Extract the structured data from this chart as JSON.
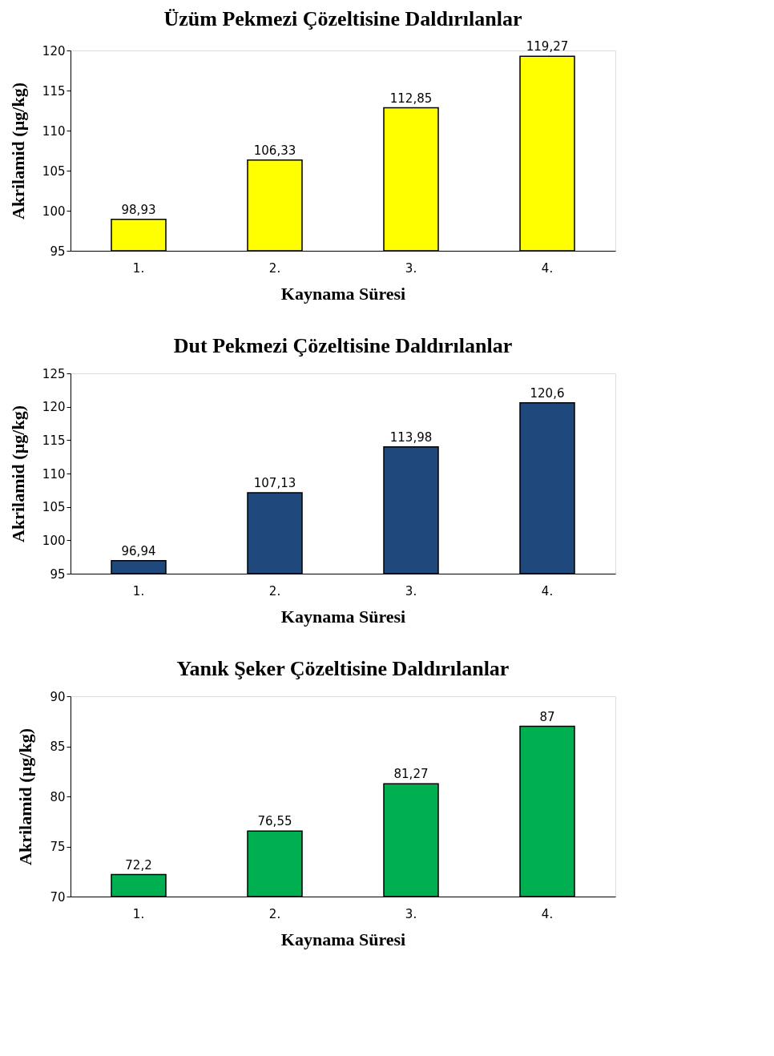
{
  "chart_data": [
    {
      "type": "bar",
      "title": "Üzüm Pekmezi Çözeltisine Daldırılanlar",
      "xlabel": "Kaynama Süresi",
      "ylabel": "Akrilamid (µg/kg)",
      "categories": [
        "1.",
        "2.",
        "3.",
        "4."
      ],
      "values": [
        98.93,
        106.33,
        112.85,
        119.27
      ],
      "value_labels": [
        "98,93",
        "106,33",
        "112,85",
        "119,27"
      ],
      "color": "#ffff00",
      "ylim": [
        95,
        120
      ],
      "yticks": [
        95,
        100,
        105,
        110,
        115,
        120
      ],
      "grid": false
    },
    {
      "type": "bar",
      "title": "Dut Pekmezi Çözeltisine Daldırılanlar",
      "xlabel": "Kaynama Süresi",
      "ylabel": "Akrilamid (µg/kg)",
      "categories": [
        "1.",
        "2.",
        "3.",
        "4."
      ],
      "values": [
        96.94,
        107.13,
        113.98,
        120.6
      ],
      "value_labels": [
        "96,94",
        "107,13",
        "113,98",
        "120,6"
      ],
      "color": "#1f497d",
      "ylim": [
        95,
        125
      ],
      "yticks": [
        95,
        100,
        105,
        110,
        115,
        120,
        125
      ],
      "grid": false
    },
    {
      "type": "bar",
      "title": "Yanık Şeker Çözeltisine Daldırılanlar",
      "xlabel": "Kaynama Süresi",
      "ylabel": "Akrilamid (µg/kg)",
      "categories": [
        "1.",
        "2.",
        "3.",
        "4."
      ],
      "values": [
        72.2,
        76.55,
        81.27,
        87
      ],
      "value_labels": [
        "72,2",
        "76,55",
        "81,27",
        "87"
      ],
      "color": "#00b050",
      "ylim": [
        70,
        90
      ],
      "yticks": [
        70,
        75,
        80,
        85,
        90
      ],
      "grid": false
    }
  ]
}
